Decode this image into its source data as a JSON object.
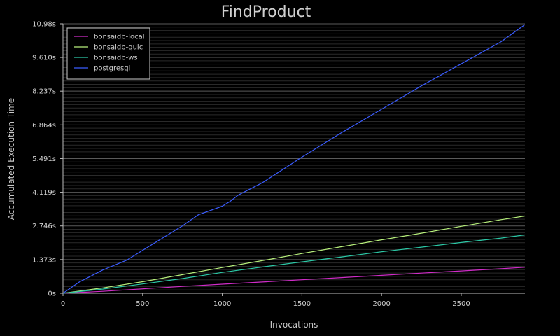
{
  "chart_data": {
    "type": "line",
    "title": "FindProduct",
    "xlabel": "Invocations",
    "ylabel": "Accumulated Execution Time",
    "xlim": [
      0,
      2900
    ],
    "ylim": [
      0,
      10.98
    ],
    "x_ticks": [
      0,
      500,
      1000,
      1500,
      2000,
      2500
    ],
    "x_tick_labels": [
      "0",
      "500",
      "1000",
      "1500",
      "2000",
      "2500"
    ],
    "y_ticks": [
      0,
      1.373,
      2.746,
      4.119,
      5.491,
      6.864,
      8.237,
      9.61,
      10.98
    ],
    "y_tick_labels": [
      "0s",
      "1.373s",
      "2.746s",
      "4.119s",
      "5.491s",
      "6.864s",
      "8.237s",
      "9.610s",
      "10.98s"
    ],
    "grid": true,
    "legend_position": "top-left",
    "series": [
      {
        "name": "bonsaidb-local",
        "color": "#d02cc8",
        "x": [
          0,
          250,
          500,
          750,
          1000,
          1250,
          1500,
          1750,
          2000,
          2250,
          2500,
          2750,
          2900
        ],
        "y": [
          0,
          0.08,
          0.18,
          0.28,
          0.37,
          0.46,
          0.55,
          0.64,
          0.73,
          0.82,
          0.91,
          1.0,
          1.06
        ]
      },
      {
        "name": "bonsaidb-quic",
        "color": "#b8f07c",
        "x": [
          0,
          250,
          500,
          750,
          1000,
          1250,
          1500,
          1750,
          2000,
          2250,
          2500,
          2750,
          2900
        ],
        "y": [
          0,
          0.22,
          0.47,
          0.76,
          1.05,
          1.33,
          1.62,
          1.9,
          2.18,
          2.45,
          2.73,
          3.0,
          3.15
        ]
      },
      {
        "name": "bonsaidb-ws",
        "color": "#2cc8a6",
        "x": [
          0,
          250,
          500,
          750,
          1000,
          1250,
          1500,
          1750,
          2000,
          2250,
          2500,
          2750,
          2900
        ],
        "y": [
          0,
          0.17,
          0.38,
          0.6,
          0.85,
          1.07,
          1.28,
          1.48,
          1.69,
          1.88,
          2.07,
          2.25,
          2.38
        ]
      },
      {
        "name": "postgresql",
        "color": "#3a5cff",
        "x": [
          0,
          100,
          250,
          400,
          500,
          750,
          850,
          1000,
          1050,
          1100,
          1250,
          1500,
          1750,
          2000,
          2250,
          2500,
          2750,
          2900
        ],
        "y": [
          0,
          0.45,
          0.95,
          1.35,
          1.75,
          2.75,
          3.2,
          3.55,
          3.75,
          4.0,
          4.5,
          5.55,
          6.55,
          7.5,
          8.45,
          9.35,
          10.25,
          10.95
        ]
      }
    ]
  }
}
